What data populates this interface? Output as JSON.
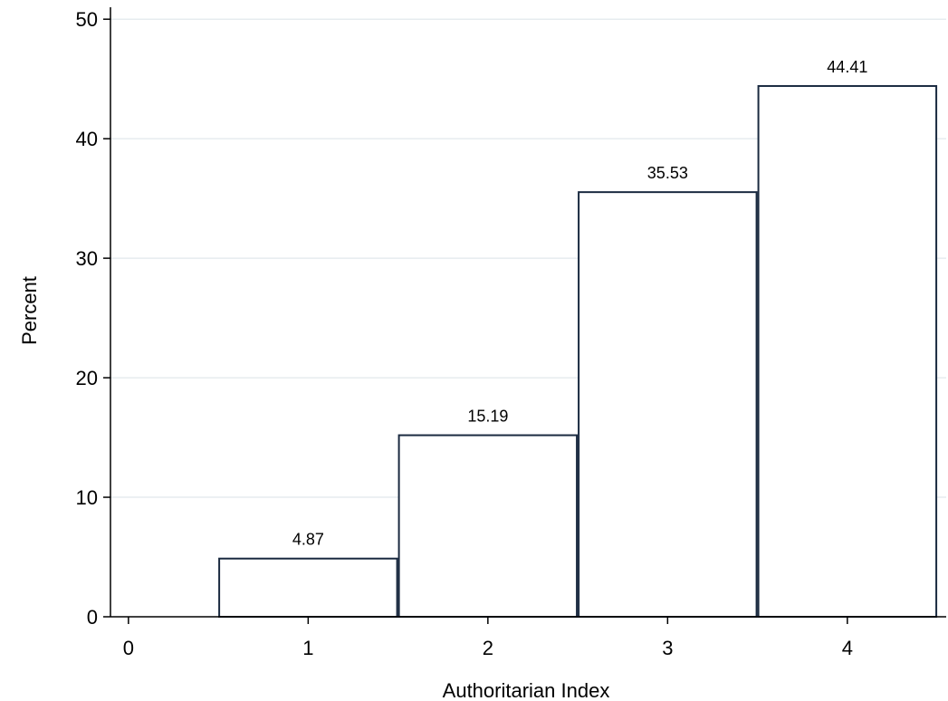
{
  "chart_data": {
    "type": "bar",
    "title": "",
    "xlabel": "Authoritarian Index",
    "ylabel": "Percent",
    "x": [
      1,
      2,
      3,
      4
    ],
    "values": [
      4.87,
      15.19,
      35.53,
      44.41
    ],
    "value_labels": [
      "4.87",
      "15.19",
      "35.53",
      "44.41"
    ],
    "xlim": [
      -0.1,
      4.55
    ],
    "ylim": [
      0,
      51
    ],
    "xticks": [
      0,
      1,
      2,
      3,
      4
    ],
    "yticks": [
      0,
      10,
      20,
      30,
      40,
      50
    ],
    "grid": true,
    "legend": "none",
    "colors": {
      "bar_fill": "#ffffff",
      "bar_edge": "#1a2a40",
      "grid": "#e6ecef",
      "axis": "#000000"
    }
  }
}
